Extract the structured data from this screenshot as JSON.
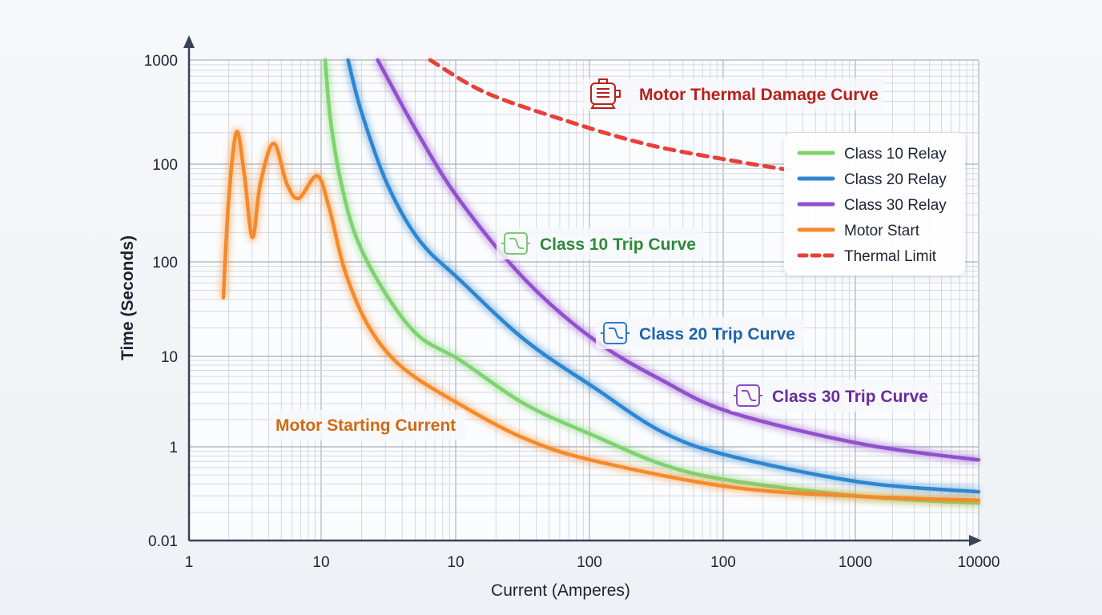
{
  "chart_data": {
    "type": "line",
    "title": "",
    "xlabel": "Current (Amperes)",
    "ylabel": "Time (Seconds)",
    "axis_scale": "log (values given in tick-index units: x index 0-6 across x tick labels, y index 0-5 from top tick down)",
    "x_ticks": [
      "1",
      "10",
      "10",
      "100",
      "100",
      "1000",
      "10000"
    ],
    "y_ticks": [
      "1000",
      "100",
      "100",
      "10",
      "1",
      "0.01"
    ],
    "grid": true,
    "legend_position": "top-right",
    "legend": [
      "Class 10 Relay",
      "Class 20 Relay",
      "Class 30 Relay",
      "Motor Start",
      "Thermal Limit"
    ],
    "series": [
      {
        "name": "Class 10 Relay",
        "color": "#7ed36f",
        "style": "solid",
        "points": [
          [
            1.03,
            0
          ],
          [
            1.07,
            0.58
          ],
          [
            1.15,
            1.2
          ],
          [
            1.27,
            1.78
          ],
          [
            1.49,
            2.36
          ],
          [
            1.73,
            2.79
          ],
          [
            2.03,
            3.04
          ],
          [
            2.52,
            3.53
          ],
          [
            3.04,
            3.88
          ],
          [
            3.55,
            4.19
          ],
          [
            4.06,
            4.36
          ],
          [
            5.06,
            4.53
          ],
          [
            6.0,
            4.6
          ]
        ]
      },
      {
        "name": "Class 20 Relay",
        "color": "#2f86d0",
        "style": "solid",
        "points": [
          [
            1.2,
            0
          ],
          [
            1.3,
            0.5
          ],
          [
            1.49,
            1.2
          ],
          [
            1.73,
            1.78
          ],
          [
            2.03,
            2.19
          ],
          [
            2.52,
            2.83
          ],
          [
            3.04,
            3.35
          ],
          [
            3.55,
            3.84
          ],
          [
            4.06,
            4.1
          ],
          [
            5.06,
            4.38
          ],
          [
            6.0,
            4.48
          ]
        ]
      },
      {
        "name": "Class 30 Relay",
        "color": "#9150cc",
        "style": "solid",
        "points": [
          [
            1.42,
            0
          ],
          [
            1.73,
            0.73
          ],
          [
            2.03,
            1.37
          ],
          [
            2.52,
            2.19
          ],
          [
            3.04,
            2.83
          ],
          [
            3.55,
            3.27
          ],
          [
            4.06,
            3.62
          ],
          [
            5.06,
            3.97
          ],
          [
            6.0,
            4.14
          ]
        ]
      },
      {
        "name": "Motor Start",
        "color": "#f58a2a",
        "style": "solid",
        "points": [
          [
            0.26,
            2.38
          ],
          [
            0.3,
            1.37
          ],
          [
            0.36,
            0.69
          ],
          [
            0.42,
            1.12
          ],
          [
            0.48,
            1.75
          ],
          [
            0.54,
            1.2
          ],
          [
            0.64,
            0.8
          ],
          [
            0.74,
            1.2
          ],
          [
            0.83,
            1.35
          ],
          [
            0.97,
            1.12
          ],
          [
            1.06,
            1.45
          ],
          [
            1.18,
            2.11
          ],
          [
            1.36,
            2.7
          ],
          [
            1.61,
            3.13
          ],
          [
            2.03,
            3.53
          ],
          [
            2.52,
            3.91
          ],
          [
            3.04,
            4.15
          ],
          [
            4.06,
            4.43
          ],
          [
            5.06,
            4.53
          ],
          [
            6.0,
            4.57
          ]
        ]
      },
      {
        "name": "Thermal Limit",
        "color": "#e8403a",
        "style": "dashed",
        "points": [
          [
            1.81,
            0
          ],
          [
            2.22,
            0.31
          ],
          [
            2.82,
            0.58
          ],
          [
            3.43,
            0.81
          ],
          [
            4.04,
            0.96
          ],
          [
            4.5,
            1.06
          ]
        ]
      }
    ],
    "annotations": [
      {
        "text": "Motor Thermal Damage Curve",
        "color": "#b8201c",
        "icon": "motor-icon"
      },
      {
        "text": "Class 10 Trip Curve",
        "color": "#2e8a3a",
        "icon": "relay-icon"
      },
      {
        "text": "Class 20 Trip Curve",
        "color": "#1f63a8",
        "icon": "relay-icon"
      },
      {
        "text": "Class 30 Trip Curve",
        "color": "#6a2c9c",
        "icon": "relay-icon"
      },
      {
        "text": "Motor Starting Current",
        "color": "#d06a12",
        "icon": ""
      }
    ]
  }
}
